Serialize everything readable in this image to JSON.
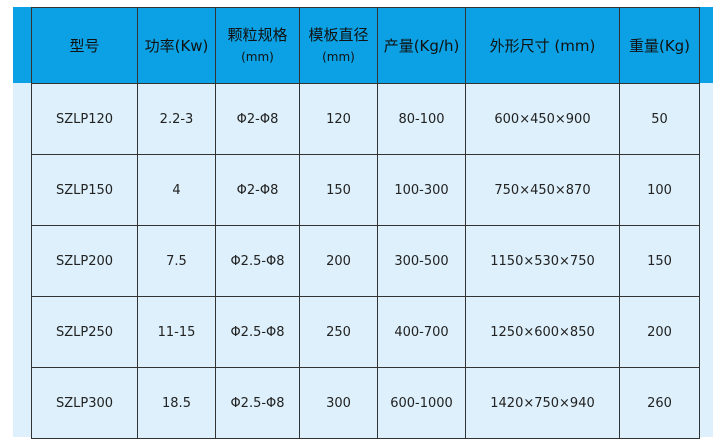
{
  "colors": {
    "header_bg": "#0ca1e4",
    "row_bg": "#ddf0fb",
    "border": "#333333"
  },
  "headers": [
    {
      "label": "型号",
      "unit": ""
    },
    {
      "label": "功率(Kw)",
      "unit": ""
    },
    {
      "label": "颗粒规格",
      "unit": "(mm)"
    },
    {
      "label": "模板直径",
      "unit": "(mm)"
    },
    {
      "label": "产量(Kg/h)",
      "unit": ""
    },
    {
      "label": "外形尺寸 (mm)",
      "unit": ""
    },
    {
      "label": "重量(Kg)",
      "unit": ""
    }
  ],
  "rows": [
    [
      "SZLP120",
      "2.2-3",
      "Φ2-Φ8",
      "120",
      "80-100",
      "600×450×900",
      "50"
    ],
    [
      "SZLP150",
      "4",
      "Φ2-Φ8",
      "150",
      "100-300",
      "750×450×870",
      "100"
    ],
    [
      "SZLP200",
      "7.5",
      "Φ2.5-Φ8",
      "200",
      "300-500",
      "1150×530×750",
      "150"
    ],
    [
      "SZLP250",
      "11-15",
      "Φ2.5-Φ8",
      "250",
      "400-700",
      "1250×600×850",
      "200"
    ],
    [
      "SZLP300",
      "18.5",
      "Φ2.5-Φ8",
      "300",
      "600-1000",
      "1420×750×940",
      "260"
    ]
  ]
}
